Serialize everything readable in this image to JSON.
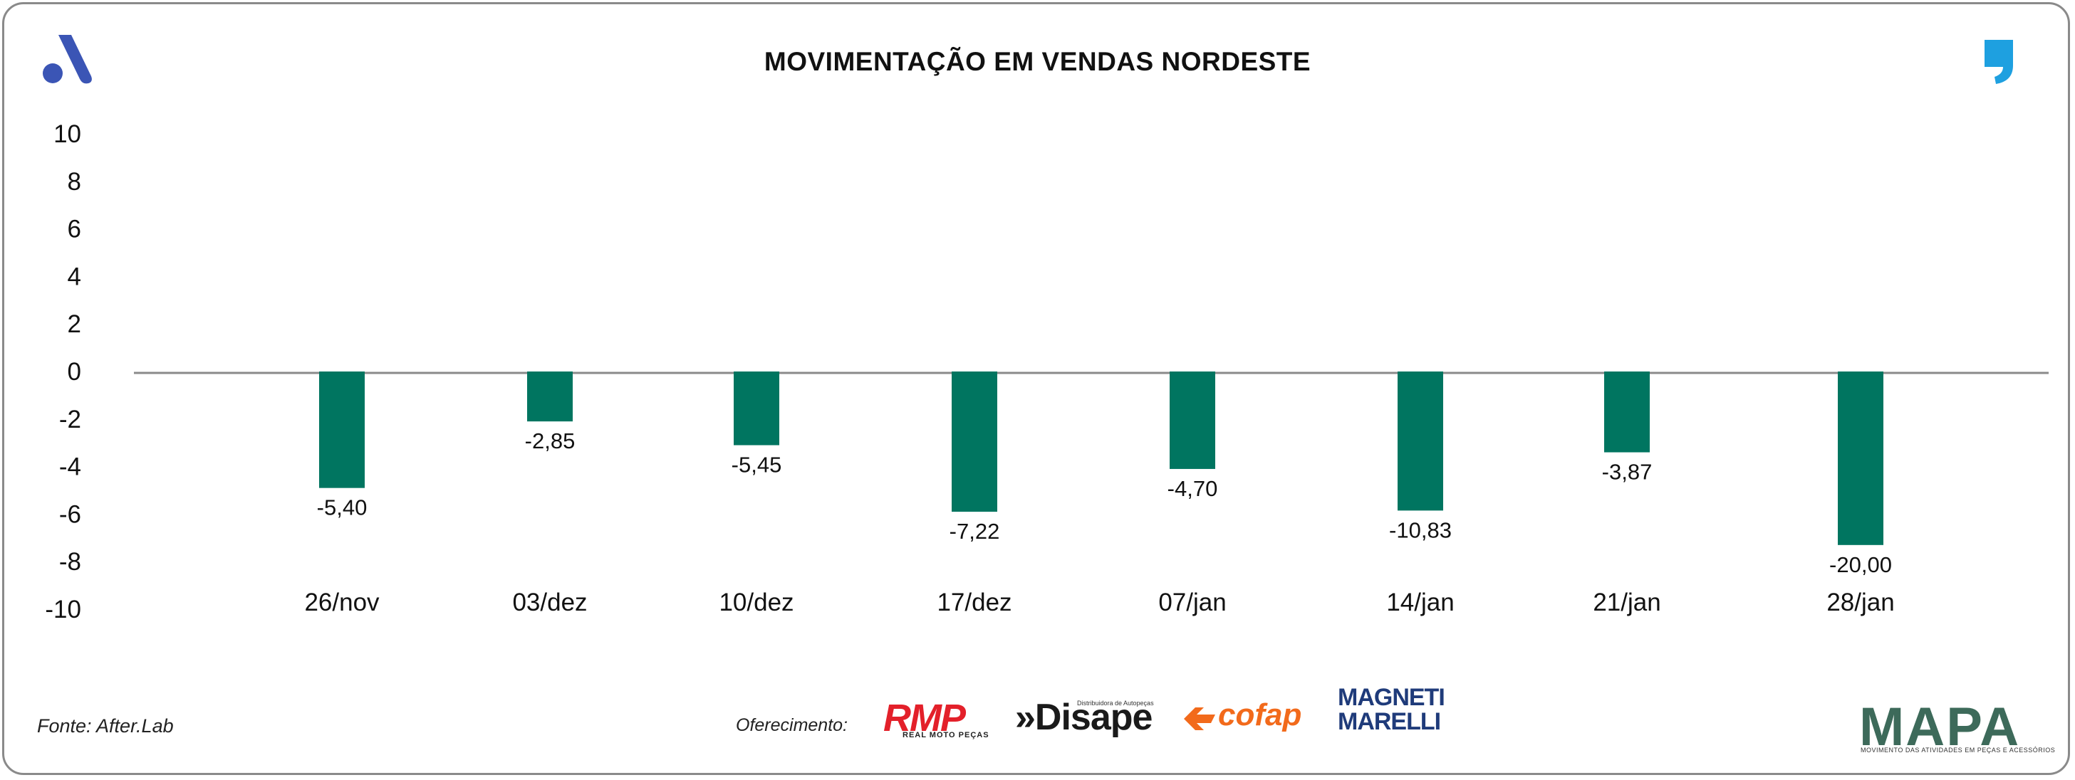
{
  "title": "MOVIMENTAÇÃO EM VENDAS NORDESTE",
  "source": "Fonte: After.Lab",
  "sponsor_label": "Oferecimento:",
  "sponsors": {
    "rmp": "RMP",
    "rmp_sub": "REAL MOTO PEÇAS",
    "disape": "»Disape",
    "disape_sub": "Distribuidora de Autopeças",
    "cofap": "cofap",
    "marelli_line1": "MAGNETI",
    "marelli_line2": "MARELLI"
  },
  "brand": {
    "name": "MAPA",
    "tagline": "MOVIMENTO DAS ATIVIDADES EM PEÇAS E ACESSÓRIOS"
  },
  "colors": {
    "bar": "#007560",
    "logo_a": "#3b55b5",
    "logo_comma": "#1ea0e0"
  },
  "chart_data": {
    "type": "bar",
    "title": "MOVIMENTAÇÃO EM VENDAS NORDESTE",
    "categories": [
      "26/nov",
      "03/dez",
      "10/dez",
      "17/dez",
      "07/jan",
      "14/jan",
      "21/jan",
      "28/jan"
    ],
    "values": [
      -5.4,
      -2.85,
      -5.45,
      -7.22,
      -4.7,
      -10.83,
      -3.87,
      -20.0
    ],
    "value_labels": [
      "-5,40",
      "-2,85",
      "-5,45",
      "-7,22",
      "-4,70",
      "-10,83",
      "-3,87",
      "-20,00"
    ],
    "bar_axis_values": [
      -4.9,
      -2.1,
      -3.1,
      -5.9,
      -4.1,
      -5.85,
      -3.4,
      -7.3
    ],
    "yticks": [
      "10",
      "8",
      "6",
      "4",
      "2",
      "0",
      "-2",
      "-4",
      "-6",
      "-8",
      "-10"
    ],
    "ylim": [
      -10,
      10
    ],
    "xlabel": "",
    "ylabel": "",
    "grid": false
  }
}
